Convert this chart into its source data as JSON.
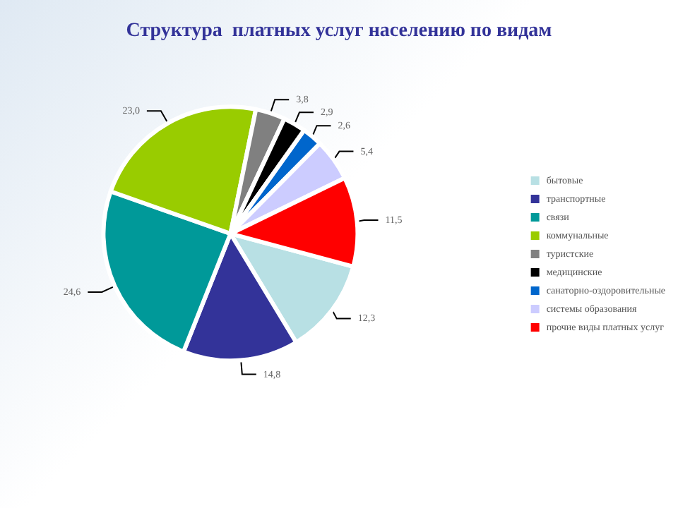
{
  "chart_data": {
    "type": "pie",
    "title": "Структура  платных услуг населению по видам",
    "categories": [
      "бытовые",
      "транспортные",
      "связи",
      "коммунальные",
      "туристские",
      "медицинские",
      "санаторно-оздоровительные",
      "системы образования",
      "прочие виды платных услуг"
    ],
    "values": [
      12.3,
      14.8,
      24.6,
      23.0,
      3.8,
      2.9,
      2.6,
      5.4,
      11.5
    ],
    "value_labels": [
      "12,3",
      "14,8",
      "24,6",
      "23,0",
      "3,8",
      "2,9",
      "2,6",
      "5,4",
      "11,5"
    ],
    "colors": [
      "#b8e0e4",
      "#333399",
      "#009999",
      "#99cc00",
      "#808080",
      "#000000",
      "#0066cc",
      "#ccccff",
      "#ff0000"
    ],
    "legend": "right"
  }
}
